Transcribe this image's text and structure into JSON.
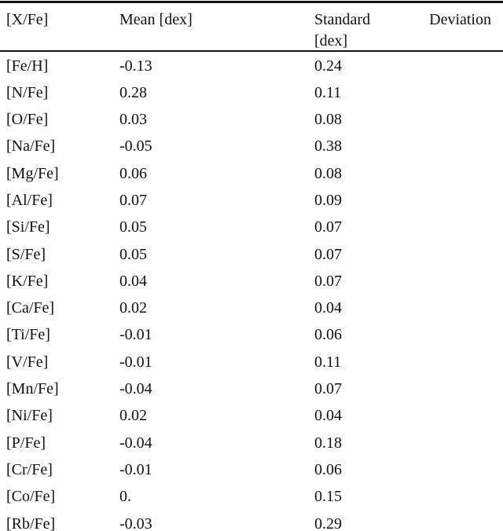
{
  "table": {
    "header": {
      "element_label": "[X/Fe]",
      "mean_label": "Mean [dex]",
      "std_word1": "Standard",
      "std_word2": "Deviation",
      "std_line2": "[dex]"
    },
    "rows": [
      {
        "element": "[Fe/H]",
        "mean": "-0.13",
        "std": "0.24"
      },
      {
        "element": "[N/Fe]",
        "mean": "0.28",
        "std": "0.11"
      },
      {
        "element": "[O/Fe]",
        "mean": "0.03",
        "std": "0.08"
      },
      {
        "element": "[Na/Fe]",
        "mean": "-0.05",
        "std": "0.38"
      },
      {
        "element": "[Mg/Fe]",
        "mean": "0.06",
        "std": "0.08"
      },
      {
        "element": "[Al/Fe]",
        "mean": "0.07",
        "std": "0.09"
      },
      {
        "element": "[Si/Fe]",
        "mean": "0.05",
        "std": "0.07"
      },
      {
        "element": "[S/Fe]",
        "mean": "0.05",
        "std": "0.07"
      },
      {
        "element": "[K/Fe]",
        "mean": "0.04",
        "std": "0.07"
      },
      {
        "element": "[Ca/Fe]",
        "mean": "0.02",
        "std": "0.04"
      },
      {
        "element": "[Ti/Fe]",
        "mean": "-0.01",
        "std": "0.06"
      },
      {
        "element": "[V/Fe]",
        "mean": "-0.01",
        "std": "0.11"
      },
      {
        "element": "[Mn/Fe]",
        "mean": "-0.04",
        "std": "0.07"
      },
      {
        "element": "[Ni/Fe]",
        "mean": "0.02",
        "std": "0.04"
      },
      {
        "element": "[P/Fe]",
        "mean": "-0.04",
        "std": "0.18"
      },
      {
        "element": "[Cr/Fe]",
        "mean": "-0.01",
        "std": "0.06"
      },
      {
        "element": "[Co/Fe]",
        "mean": "0.",
        "std": "0.15"
      },
      {
        "element": "[Rb/Fe]",
        "mean": "-0.03",
        "std": "0.29"
      }
    ]
  }
}
